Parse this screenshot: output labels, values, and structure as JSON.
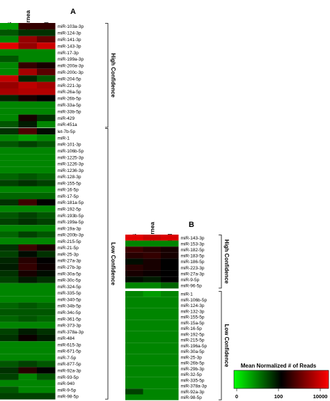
{
  "chart_data": [
    {
      "type": "heatmap",
      "panel_label": "A",
      "columns": [
        "CB",
        "Cornea",
        "TM"
      ],
      "groups": [
        {
          "label": "High Confidence",
          "rows": [
            {
              "name": "miR-103a-3p",
              "values": [
                5,
                250,
                250
              ]
            },
            {
              "name": "miR-124-3p",
              "values": [
                20,
                40,
                40
              ]
            },
            {
              "name": "miR-141-3p",
              "values": [
                8,
                1500,
                600
              ]
            },
            {
              "name": "miR-143-3p",
              "values": [
                6000,
                1500,
                4000
              ]
            },
            {
              "name": "miR-17-3p",
              "values": [
                8,
                8,
                8
              ]
            },
            {
              "name": "miR-199a-3p",
              "values": [
                20,
                8,
                8
              ]
            },
            {
              "name": "miR-200a-3p",
              "values": [
                8,
                250,
                150
              ]
            },
            {
              "name": "miR-200c-3p",
              "values": [
                8,
                2000,
                500
              ]
            },
            {
              "name": "miR-204-5p",
              "values": [
                3500,
                50,
                20
              ]
            },
            {
              "name": "miR-221-3p",
              "values": [
                1500,
                3000,
                2000
              ]
            },
            {
              "name": "miR-26a-5p",
              "values": [
                2000,
                2500,
                2500
              ]
            },
            {
              "name": "miR-26b-5p",
              "values": [
                50,
                150,
                100
              ]
            },
            {
              "name": "miR-33a-5p",
              "values": [
                8,
                8,
                8
              ]
            },
            {
              "name": "miR-33b-5p",
              "values": [
                8,
                8,
                8
              ]
            },
            {
              "name": "miR-429",
              "values": [
                8,
                150,
                40
              ]
            },
            {
              "name": "miR-451a",
              "values": [
                20,
                60,
                8
              ]
            }
          ]
        },
        {
          "label": "Low Confidence",
          "rows": [
            {
              "name": "let-7b-5p",
              "values": [
                40,
                400,
                80
              ]
            },
            {
              "name": "miR-1",
              "values": [
                8,
                5,
                8
              ]
            },
            {
              "name": "miR-101-3p",
              "values": [
                20,
                30,
                20
              ]
            },
            {
              "name": "miR-106b-5p",
              "values": [
                8,
                8,
                8
              ]
            },
            {
              "name": "miR-1225-3p",
              "values": [
                8,
                8,
                8
              ]
            },
            {
              "name": "miR-1226-3p",
              "values": [
                8,
                8,
                8
              ]
            },
            {
              "name": "miR-1236-3p",
              "values": [
                8,
                8,
                8
              ]
            },
            {
              "name": "miR-128-3p",
              "values": [
                15,
                20,
                15
              ]
            },
            {
              "name": "miR-155-5p",
              "values": [
                30,
                40,
                30
              ]
            },
            {
              "name": "miR-16-5p",
              "values": [
                8,
                8,
                8
              ]
            },
            {
              "name": "miR-17-5p",
              "values": [
                15,
                15,
                15
              ]
            },
            {
              "name": "miR-181a-5p",
              "values": [
                40,
                300,
                100
              ]
            },
            {
              "name": "miR-192-5p",
              "values": [
                8,
                8,
                8
              ]
            },
            {
              "name": "miR-193b-5p",
              "values": [
                20,
                30,
                20
              ]
            },
            {
              "name": "miR-199a-5p",
              "values": [
                30,
                40,
                30
              ]
            },
            {
              "name": "miR-19a-3p",
              "values": [
                8,
                8,
                8
              ]
            },
            {
              "name": "miR-200b-3p",
              "values": [
                15,
                30,
                20
              ]
            },
            {
              "name": "miR-215-5p",
              "values": [
                8,
                8,
                8
              ]
            },
            {
              "name": "miR-21-5p",
              "values": [
                40,
                300,
                150
              ]
            },
            {
              "name": "miR-25-3p",
              "values": [
                30,
                80,
                40
              ]
            },
            {
              "name": "miR-27a-3p",
              "values": [
                50,
                200,
                100
              ]
            },
            {
              "name": "miR-27b-3p",
              "values": [
                60,
                250,
                120
              ]
            },
            {
              "name": "miR-30a-5p",
              "values": [
                40,
                150,
                80
              ]
            },
            {
              "name": "miR-30c-5p",
              "values": [
                30,
                60,
                40
              ]
            },
            {
              "name": "miR-324-5p",
              "values": [
                8,
                8,
                8
              ]
            },
            {
              "name": "miR-335-5p",
              "values": [
                8,
                8,
                8
              ]
            },
            {
              "name": "miR-340-5p",
              "values": [
                8,
                8,
                8
              ]
            },
            {
              "name": "miR-34b-5p",
              "values": [
                15,
                20,
                15
              ]
            },
            {
              "name": "miR-34c-5p",
              "values": [
                20,
                20,
                20
              ]
            },
            {
              "name": "miR-361-5p",
              "values": [
                15,
                20,
                15
              ]
            },
            {
              "name": "miR-373-3p",
              "values": [
                8,
                8,
                8
              ]
            },
            {
              "name": "miR-378a-3p",
              "values": [
                30,
                60,
                40
              ]
            },
            {
              "name": "miR-484",
              "values": [
                40,
                120,
                60
              ]
            },
            {
              "name": "miR-615-3p",
              "values": [
                8,
                8,
                8
              ]
            },
            {
              "name": "miR-671-5p",
              "values": [
                8,
                8,
                8
              ]
            },
            {
              "name": "miR-7-5p",
              "values": [
                8,
                8,
                8
              ]
            },
            {
              "name": "miR-877-5p",
              "values": [
                20,
                30,
                20
              ]
            },
            {
              "name": "miR-92a-3p",
              "values": [
                40,
                200,
                100
              ]
            },
            {
              "name": "miR-93-5p",
              "values": [
                30,
                8,
                20
              ]
            },
            {
              "name": "miR-940",
              "values": [
                8,
                8,
                8
              ]
            },
            {
              "name": "miR-9-5p",
              "values": [
                20,
                8,
                8
              ]
            },
            {
              "name": "miR-98-5p",
              "values": [
                30,
                30,
                30
              ]
            }
          ]
        }
      ]
    },
    {
      "type": "heatmap",
      "panel_label": "B",
      "columns": [
        "CB",
        "Cornea",
        "TM"
      ],
      "groups": [
        {
          "label": "High Confidence",
          "rows": [
            {
              "name": "miR-143-3p",
              "values": [
                6000,
                4000,
                5000
              ]
            },
            {
              "name": "miR-153-3p",
              "values": [
                8,
                8,
                8
              ]
            },
            {
              "name": "miR-182-5p",
              "values": [
                300,
                200,
                150
              ]
            },
            {
              "name": "miR-183-5p",
              "values": [
                200,
                250,
                150
              ]
            },
            {
              "name": "miR-186-5p",
              "values": [
                80,
                150,
                100
              ]
            },
            {
              "name": "miR-223-3p",
              "values": [
                200,
                150,
                100
              ]
            },
            {
              "name": "miR-27a-3p",
              "values": [
                150,
                120,
                100
              ]
            },
            {
              "name": "miR-9-5p",
              "values": [
                80,
                60,
                100
              ]
            },
            {
              "name": "miR-96-5p",
              "values": [
                8,
                8,
                15
              ]
            }
          ]
        },
        {
          "label": "Low Confidence",
          "rows": [
            {
              "name": "miR-1",
              "values": [
                8,
                5,
                8
              ]
            },
            {
              "name": "miR-106b-5p",
              "values": [
                8,
                8,
                8
              ]
            },
            {
              "name": "miR-124-3p",
              "values": [
                8,
                8,
                8
              ]
            },
            {
              "name": "miR-132-3p",
              "values": [
                8,
                8,
                8
              ]
            },
            {
              "name": "miR-155-5p",
              "values": [
                8,
                8,
                8
              ]
            },
            {
              "name": "miR-15a-5p",
              "values": [
                8,
                8,
                8
              ]
            },
            {
              "name": "miR-16-5p",
              "values": [
                8,
                8,
                8
              ]
            },
            {
              "name": "miR-192-5p",
              "values": [
                8,
                8,
                8
              ]
            },
            {
              "name": "miR-215-5p",
              "values": [
                8,
                8,
                8
              ]
            },
            {
              "name": "miR-196a-5p",
              "values": [
                8,
                8,
                8
              ]
            },
            {
              "name": "miR-30a-5p",
              "values": [
                8,
                8,
                8
              ]
            },
            {
              "name": "miR-25-3p",
              "values": [
                8,
                8,
                8
              ]
            },
            {
              "name": "miR-26b-5p",
              "values": [
                8,
                8,
                8
              ]
            },
            {
              "name": "miR-29b-3p",
              "values": [
                8,
                8,
                8
              ]
            },
            {
              "name": "miR-32-5p",
              "values": [
                8,
                8,
                8
              ]
            },
            {
              "name": "miR-335-5p",
              "values": [
                8,
                8,
                8
              ]
            },
            {
              "name": "miR-378a-3p",
              "values": [
                8,
                8,
                8
              ]
            },
            {
              "name": "miR-92a-3p",
              "values": [
                30,
                8,
                8
              ]
            },
            {
              "name": "miR-98-5p",
              "values": [
                8,
                8,
                8
              ]
            }
          ]
        }
      ]
    }
  ],
  "legend": {
    "title": "Mean Normalized # of Reads",
    "ticks": [
      "0",
      "100",
      "10000"
    ],
    "scale": "log",
    "colors": [
      "#00ff00",
      "#000000",
      "#ff0000"
    ]
  }
}
